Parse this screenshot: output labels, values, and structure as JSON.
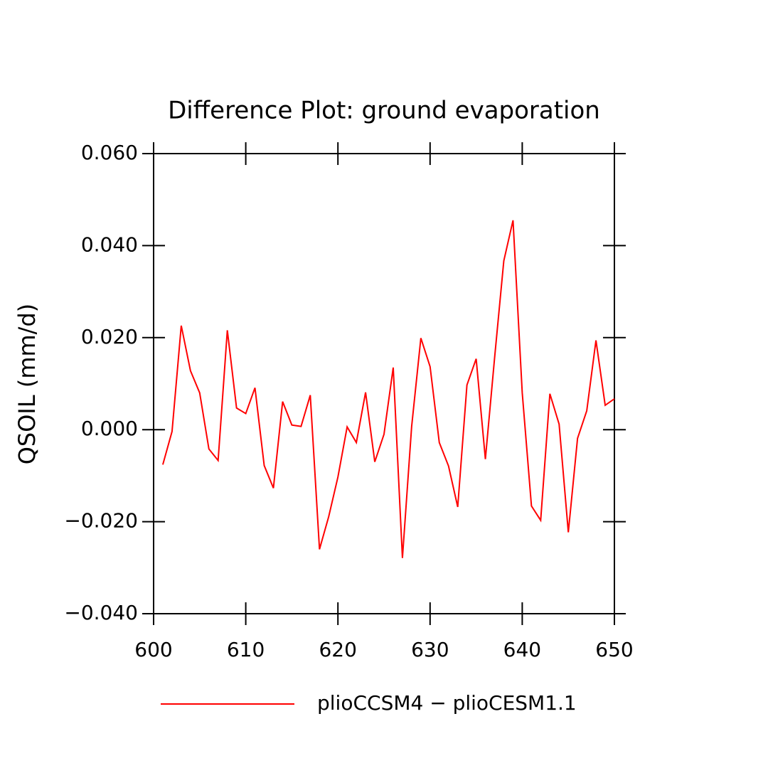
{
  "chart_data": {
    "type": "line",
    "title": "Difference Plot: ground evaporation",
    "y_label": "QSOIL  (mm/d)",
    "x": [
      601,
      602,
      603,
      604,
      605,
      606,
      607,
      608,
      609,
      610,
      611,
      612,
      613,
      614,
      615,
      616,
      617,
      618,
      619,
      620,
      621,
      622,
      623,
      624,
      625,
      626,
      627,
      628,
      629,
      630,
      631,
      632,
      633,
      634,
      635,
      636,
      637,
      638,
      639,
      640,
      641,
      642,
      643,
      644,
      645,
      646,
      647,
      648,
      649,
      650
    ],
    "series": [
      {
        "name": "plioCCSM4 − plioCESM1.1",
        "color": "#ff0000",
        "values": [
          -0.0076,
          -0.0004,
          0.0226,
          0.0128,
          0.008,
          -0.0042,
          -0.0067,
          0.0216,
          0.0047,
          0.0035,
          0.0091,
          -0.0078,
          -0.0127,
          0.0061,
          0.001,
          0.0007,
          0.0075,
          -0.026,
          -0.0189,
          -0.0103,
          0.0006,
          -0.0028,
          0.0081,
          -0.007,
          -0.001,
          0.0135,
          -0.0279,
          0.0007,
          0.0199,
          0.0137,
          -0.0028,
          -0.0079,
          -0.0168,
          0.0097,
          0.0154,
          -0.0064,
          0.0156,
          0.0367,
          0.0455,
          0.008,
          -0.0166,
          -0.0197,
          0.0078,
          0.0012,
          -0.0223,
          -0.0019,
          0.0041,
          0.0194,
          0.0053,
          0.0067
        ]
      }
    ],
    "xlim": [
      600,
      650
    ],
    "xticks": [
      600,
      610,
      620,
      630,
      640,
      650
    ],
    "ylim": [
      -0.04,
      0.06
    ],
    "yticks": [
      {
        "value": -0.04,
        "label": "−0.040"
      },
      {
        "value": -0.02,
        "label": "−0.020"
      },
      {
        "value": 0,
        "label": "0.000"
      },
      {
        "value": 0.02,
        "label": "0.020"
      },
      {
        "value": 0.04,
        "label": "0.040"
      },
      {
        "value": 0.06,
        "label": "0.060"
      }
    ],
    "grid": false,
    "legend": "bottom"
  }
}
